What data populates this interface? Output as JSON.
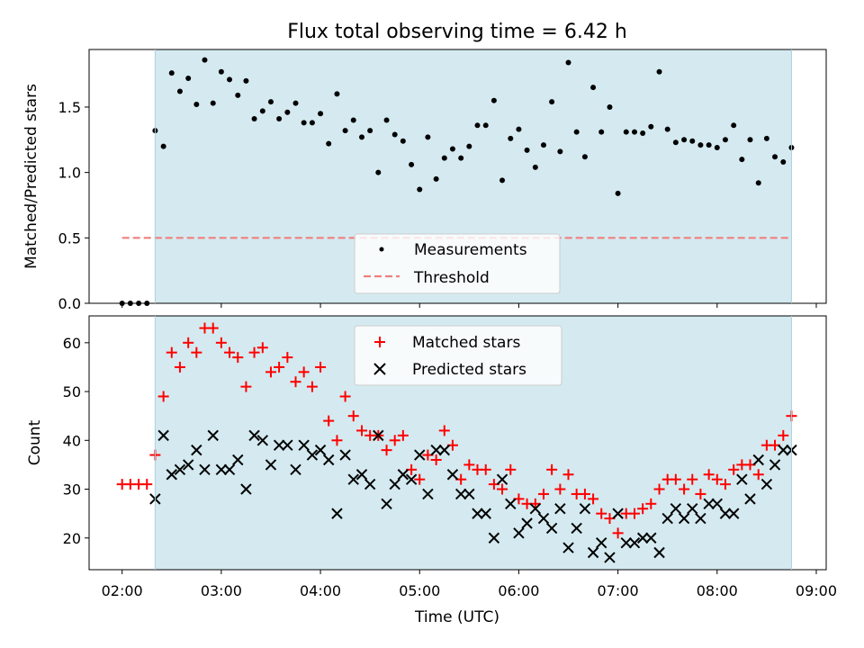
{
  "chart_data": [
    {
      "type": "scatter",
      "title": "Flux total observing time = 6.42 h",
      "ylabel": "Matched/Predicted stars",
      "xlabel": "",
      "x_unit": "hours UTC",
      "xlim": [
        1.667,
        9.1
      ],
      "ylim": [
        0,
        1.94
      ],
      "yticks": [
        0.0,
        0.5,
        1.0,
        1.5
      ],
      "ytick_labels": [
        "0.0",
        "0.5",
        "1.0",
        "1.5"
      ],
      "xticks": [
        2,
        3,
        4,
        5,
        6,
        7,
        8,
        9
      ],
      "xtick_labels_shown": false,
      "observing_span": [
        2.333,
        8.75
      ],
      "observing_span_color": "#d4eaf0",
      "legend": {
        "position": "lower-center",
        "entries": [
          "Measurements",
          "Threshold"
        ]
      },
      "series": [
        {
          "name": "Measurements",
          "marker": "dot",
          "color": "#000000",
          "x": [
            2.0,
            2.083,
            2.167,
            2.25,
            2.333,
            2.417,
            2.5,
            2.583,
            2.667,
            2.75,
            2.833,
            2.917,
            3.0,
            3.083,
            3.167,
            3.25,
            3.333,
            3.417,
            3.5,
            3.583,
            3.667,
            3.75,
            3.833,
            3.917,
            4.0,
            4.083,
            4.167,
            4.25,
            4.333,
            4.417,
            4.5,
            4.583,
            4.667,
            4.75,
            4.833,
            4.917,
            5.0,
            5.083,
            5.167,
            5.25,
            5.333,
            5.417,
            5.5,
            5.583,
            5.667,
            5.75,
            5.833,
            5.917,
            6.0,
            6.083,
            6.167,
            6.25,
            6.333,
            6.417,
            6.5,
            6.583,
            6.667,
            6.75,
            6.833,
            6.917,
            7.0,
            7.083,
            7.167,
            7.25,
            7.333,
            7.417,
            7.5,
            7.583,
            7.667,
            7.75,
            7.833,
            7.917,
            8.0,
            8.083,
            8.167,
            8.25,
            8.333,
            8.417,
            8.5,
            8.583,
            8.667,
            8.75
          ],
          "y": [
            0.0,
            0.0,
            0.0,
            0.0,
            1.32,
            1.2,
            1.76,
            1.62,
            1.72,
            1.52,
            1.86,
            1.53,
            1.77,
            1.71,
            1.59,
            1.7,
            1.41,
            1.47,
            1.54,
            1.41,
            1.46,
            1.53,
            1.38,
            1.38,
            1.45,
            1.22,
            1.6,
            1.32,
            1.4,
            1.27,
            1.32,
            1.0,
            1.4,
            1.29,
            1.24,
            1.06,
            0.87,
            1.27,
            0.95,
            1.11,
            1.18,
            1.11,
            1.2,
            1.36,
            1.36,
            1.55,
            0.94,
            1.26,
            1.33,
            1.17,
            1.04,
            1.21,
            1.54,
            1.16,
            1.84,
            1.31,
            1.12,
            1.65,
            1.31,
            1.5,
            0.84,
            1.31,
            1.31,
            1.3,
            1.35,
            1.77,
            1.33,
            1.23,
            1.25,
            1.24,
            1.21,
            1.21,
            1.19,
            1.25,
            1.36,
            1.1,
            1.25,
            0.92,
            1.26,
            1.12,
            1.08,
            1.19
          ]
        },
        {
          "name": "Threshold",
          "line": "dashed",
          "color": "#f07f7f",
          "x": [
            2.0,
            8.75
          ],
          "y": [
            0.5,
            0.5
          ]
        }
      ]
    },
    {
      "type": "scatter",
      "title": "",
      "ylabel": "Count",
      "xlabel": "Time (UTC)",
      "x_unit": "hours UTC",
      "xlim": [
        1.667,
        9.1
      ],
      "ylim": [
        13.5,
        65.5
      ],
      "yticks": [
        20,
        30,
        40,
        50,
        60
      ],
      "ytick_labels": [
        "20",
        "30",
        "40",
        "50",
        "60"
      ],
      "xticks": [
        2,
        3,
        4,
        5,
        6,
        7,
        8,
        9
      ],
      "xtick_labels": [
        "02:00",
        "03:00",
        "04:00",
        "05:00",
        "06:00",
        "07:00",
        "08:00",
        "09:00"
      ],
      "observing_span": [
        2.333,
        8.75
      ],
      "observing_span_color": "#d4eaf0",
      "legend": {
        "position": "upper-center",
        "entries": [
          "Matched stars",
          "Predicted stars"
        ]
      },
      "series": [
        {
          "name": "Matched stars",
          "marker": "plus",
          "color": "#ff0000",
          "x": [
            2.0,
            2.083,
            2.167,
            2.25,
            2.333,
            2.417,
            2.5,
            2.583,
            2.667,
            2.75,
            2.833,
            2.917,
            3.0,
            3.083,
            3.167,
            3.25,
            3.333,
            3.417,
            3.5,
            3.583,
            3.667,
            3.75,
            3.833,
            3.917,
            4.0,
            4.083,
            4.167,
            4.25,
            4.333,
            4.417,
            4.5,
            4.583,
            4.667,
            4.75,
            4.833,
            4.917,
            5.0,
            5.083,
            5.167,
            5.25,
            5.333,
            5.417,
            5.5,
            5.583,
            5.667,
            5.75,
            5.833,
            5.917,
            6.0,
            6.083,
            6.167,
            6.25,
            6.333,
            6.417,
            6.5,
            6.583,
            6.667,
            6.75,
            6.833,
            6.917,
            7.0,
            7.083,
            7.167,
            7.25,
            7.333,
            7.417,
            7.5,
            7.583,
            7.667,
            7.75,
            7.833,
            7.917,
            8.0,
            8.083,
            8.167,
            8.25,
            8.333,
            8.417,
            8.5,
            8.583,
            8.667,
            8.75
          ],
          "y": [
            31,
            31,
            31,
            31,
            37,
            49,
            58,
            55,
            60,
            58,
            63,
            63,
            60,
            58,
            57,
            51,
            58,
            59,
            54,
            55,
            57,
            52,
            54,
            51,
            55,
            44,
            40,
            49,
            45,
            42,
            41,
            41,
            38,
            40,
            41,
            34,
            32,
            37,
            36,
            42,
            39,
            32,
            35,
            34,
            34,
            31,
            30,
            34,
            28,
            27,
            27,
            29,
            34,
            30,
            33,
            29,
            29,
            28,
            25,
            24,
            21,
            25,
            25,
            26,
            27,
            30,
            32,
            32,
            30,
            32,
            29,
            33,
            32,
            31,
            34,
            35,
            35,
            33,
            39,
            39,
            41,
            45
          ]
        },
        {
          "name": "Predicted stars",
          "marker": "x",
          "color": "#000000",
          "x": [
            2.333,
            2.417,
            2.5,
            2.583,
            2.667,
            2.75,
            2.833,
            2.917,
            3.0,
            3.083,
            3.167,
            3.25,
            3.333,
            3.417,
            3.5,
            3.583,
            3.667,
            3.75,
            3.833,
            3.917,
            4.0,
            4.083,
            4.167,
            4.25,
            4.333,
            4.417,
            4.5,
            4.583,
            4.667,
            4.75,
            4.833,
            4.917,
            5.0,
            5.083,
            5.167,
            5.25,
            5.333,
            5.417,
            5.5,
            5.583,
            5.667,
            5.75,
            5.833,
            5.917,
            6.0,
            6.083,
            6.167,
            6.25,
            6.333,
            6.417,
            6.5,
            6.583,
            6.667,
            6.75,
            6.833,
            6.917,
            7.0,
            7.083,
            7.167,
            7.25,
            7.333,
            7.417,
            7.5,
            7.583,
            7.667,
            7.75,
            7.833,
            7.917,
            8.0,
            8.083,
            8.167,
            8.25,
            8.333,
            8.417,
            8.5,
            8.583,
            8.667,
            8.75
          ],
          "y": [
            28,
            41,
            33,
            34,
            35,
            38,
            34,
            41,
            34,
            34,
            36,
            30,
            41,
            40,
            35,
            39,
            39,
            34,
            39,
            37,
            38,
            36,
            25,
            37,
            32,
            33,
            31,
            41,
            27,
            31,
            33,
            32,
            37,
            29,
            38,
            38,
            33,
            29,
            29,
            25,
            25,
            20,
            32,
            27,
            21,
            23,
            26,
            24,
            22,
            26,
            18,
            22,
            26,
            17,
            19,
            16,
            25,
            19,
            19,
            20,
            20,
            17,
            24,
            26,
            24,
            26,
            24,
            27,
            27,
            25,
            25,
            32,
            28,
            36,
            31,
            35,
            38,
            38
          ]
        }
      ]
    }
  ]
}
